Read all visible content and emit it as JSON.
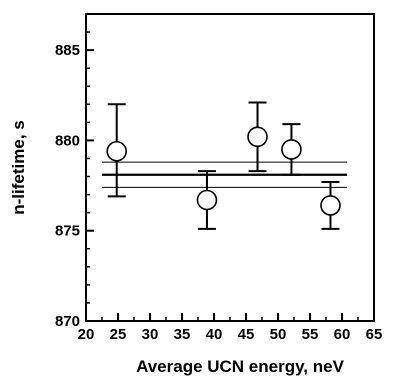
{
  "chart_data": {
    "type": "scatter",
    "xlabel": "Average UCN energy, neV",
    "ylabel": "n-lifetime, s",
    "xlim": [
      20,
      65
    ],
    "ylim": [
      870,
      887
    ],
    "x_ticks": [
      20,
      25,
      30,
      35,
      40,
      45,
      50,
      55,
      60,
      65
    ],
    "y_ticks": [
      870,
      875,
      880,
      885
    ],
    "grid": false,
    "points": [
      {
        "x": 24.8,
        "y": 879.4,
        "y_low": 876.9,
        "y_high": 882.0
      },
      {
        "x": 38.9,
        "y": 876.7,
        "y_low": 875.1,
        "y_high": 878.3
      },
      {
        "x": 46.8,
        "y": 880.2,
        "y_low": 878.3,
        "y_high": 882.1
      },
      {
        "x": 52.1,
        "y": 879.5,
        "y_low": 878.1,
        "y_high": 880.9
      },
      {
        "x": 58.2,
        "y": 876.4,
        "y_low": 875.1,
        "y_high": 877.7
      }
    ],
    "fit": {
      "mean": 878.1,
      "band_low": 877.4,
      "band_high": 878.8,
      "x_start": 22.5,
      "x_end": 60.8
    }
  }
}
